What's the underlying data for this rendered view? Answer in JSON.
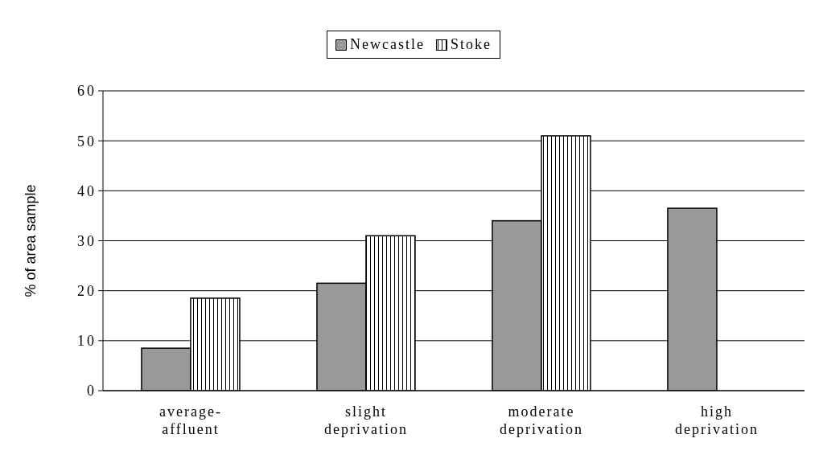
{
  "chart_data": {
    "type": "bar",
    "categories": [
      "average-affluent",
      "slight deprivation",
      "moderate deprivation",
      "high deprivation"
    ],
    "series": [
      {
        "name": "Newcastle",
        "color": "#999999",
        "values": [
          8.5,
          21.5,
          34,
          36.5
        ]
      },
      {
        "name": "Stoke",
        "color": "#ffffff",
        "values": [
          18.5,
          31,
          51,
          null
        ]
      }
    ],
    "ylabel": "% of area sample",
    "ylim": [
      0,
      60
    ],
    "yticks": [
      0,
      10,
      20,
      30,
      40,
      50,
      60
    ],
    "grid": "y",
    "legend": "top"
  }
}
